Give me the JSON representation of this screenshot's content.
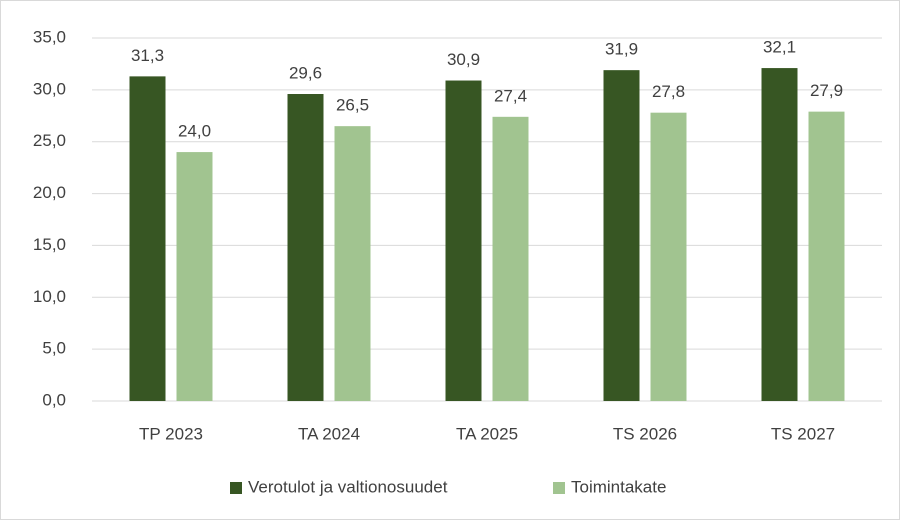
{
  "chart_data": {
    "type": "bar",
    "categories": [
      "TP 2023",
      "TA 2024",
      "TA 2025",
      "TS 2026",
      "TS 2027"
    ],
    "series": [
      {
        "name": "Verotulot ja valtionosuudet",
        "color": "#375623",
        "values": [
          31.3,
          29.6,
          30.9,
          31.9,
          32.1
        ],
        "value_labels": [
          "31,3",
          "29,6",
          "30,9",
          "31,9",
          "32,1"
        ]
      },
      {
        "name": "Toimintakate",
        "color": "#a1c490",
        "values": [
          24.0,
          26.5,
          27.4,
          27.8,
          27.9
        ],
        "value_labels": [
          "24,0",
          "26,5",
          "27,4",
          "27,8",
          "27,9"
        ]
      }
    ],
    "ylim": [
      0,
      35
    ],
    "yticks": [
      {
        "value": 0,
        "label": "0,0"
      },
      {
        "value": 5,
        "label": "5,0"
      },
      {
        "value": 10,
        "label": "10,0"
      },
      {
        "value": 15,
        "label": "15,0"
      },
      {
        "value": 20,
        "label": "20,0"
      },
      {
        "value": 25,
        "label": "25,0"
      },
      {
        "value": 30,
        "label": "30,0"
      },
      {
        "value": 35,
        "label": "35,0"
      }
    ],
    "grid": true,
    "legend": "bottom"
  }
}
